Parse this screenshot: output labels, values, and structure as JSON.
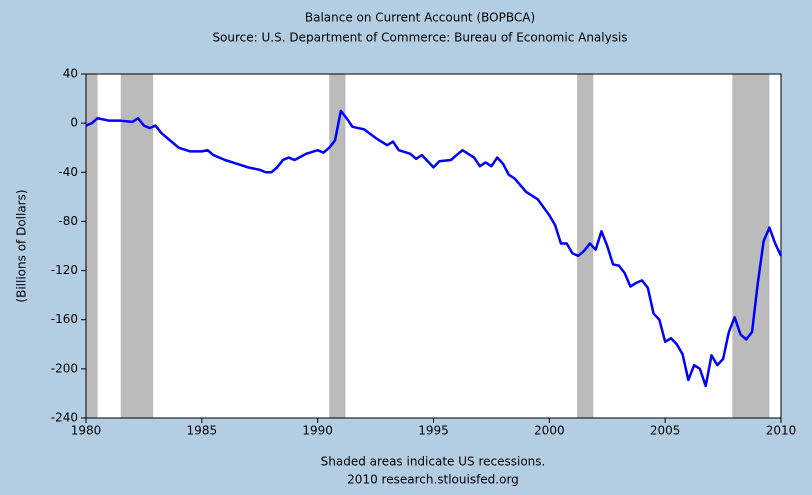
{
  "chart_data": {
    "type": "line",
    "title": "Balance on Current Account (BOPBCA)",
    "subtitle": "Source: U.S. Department of Commerce: Bureau of Economic Analysis",
    "y_label": "(Billions of Dollars)",
    "footnote": "Shaded areas indicate US recessions.",
    "credit": "2010 research.stlouisfed.org",
    "xlim": [
      1980,
      2010
    ],
    "xticks": [
      1980,
      1985,
      1990,
      1995,
      2000,
      2005,
      2010
    ],
    "ylim": [
      -240,
      40
    ],
    "yticks": [
      40,
      0,
      -40,
      -80,
      -120,
      -160,
      -200,
      -240
    ],
    "recessions": [
      [
        1980.0,
        1980.5
      ],
      [
        1981.5,
        1982.9
      ],
      [
        1990.5,
        1991.2
      ],
      [
        2001.2,
        2001.9
      ],
      [
        2007.9,
        2009.5
      ]
    ],
    "recession_color": "#bbbbbb",
    "series": [
      {
        "color": "#0000ff",
        "x": [
          1980.0,
          1980.25,
          1980.5,
          1981,
          1981.5,
          1982,
          1982.25,
          1982.5,
          1982.75,
          1983,
          1983.25,
          1983.5,
          1984,
          1984.5,
          1985,
          1985.25,
          1985.5,
          1986,
          1986.5,
          1987,
          1987.5,
          1987.75,
          1988,
          1988.25,
          1988.5,
          1988.75,
          1989,
          1989.5,
          1990,
          1990.25,
          1990.5,
          1990.75,
          1991,
          1991.25,
          1991.5,
          1992,
          1992.5,
          1993,
          1993.25,
          1993.5,
          1994,
          1994.25,
          1994.5,
          1995,
          1995.25,
          1995.75,
          1996,
          1996.25,
          1996.75,
          1997,
          1997.25,
          1997.5,
          1997.75,
          1998,
          1998.25,
          1998.5,
          1999,
          1999.5,
          2000,
          2000.25,
          2000.5,
          2000.75,
          2001,
          2001.25,
          2001.5,
          2001.75,
          2002,
          2002.25,
          2002.5,
          2002.75,
          2003,
          2003.25,
          2003.5,
          2003.75,
          2004,
          2004.25,
          2004.5,
          2004.75,
          2005,
          2005.25,
          2005.5,
          2005.75,
          2006,
          2006.25,
          2006.5,
          2006.75,
          2007,
          2007.25,
          2007.5,
          2007.75,
          2008,
          2008.25,
          2008.5,
          2008.75,
          2009,
          2009.25,
          2009.5,
          2009.75,
          2010
        ],
        "values": [
          -2,
          0,
          4,
          2,
          2,
          1,
          4,
          -2,
          -4,
          -2,
          -8,
          -12,
          -20,
          -23,
          -23,
          -22,
          -26,
          -30,
          -33,
          -36,
          -38,
          -40,
          -40,
          -36,
          -30,
          -28,
          -30,
          -25,
          -22,
          -24,
          -20,
          -14,
          10,
          4,
          -3,
          -5,
          -12,
          -18,
          -15,
          -22,
          -25,
          -29,
          -26,
          -36,
          -31,
          -30,
          -26,
          -22,
          -28,
          -35,
          -32,
          -35,
          -28,
          -33,
          -42,
          -45,
          -56,
          -62,
          -75,
          -83,
          -98,
          -98,
          -106,
          -108,
          -104,
          -98,
          -103,
          -88,
          -100,
          -115,
          -116,
          -122,
          -133,
          -130,
          -128,
          -134,
          -155,
          -160,
          -178,
          -175,
          -180,
          -188,
          -209,
          -197,
          -200,
          -214,
          -189,
          -197,
          -192,
          -170,
          -158,
          -172,
          -176,
          -170,
          -130,
          -96,
          -85,
          -98,
          -108
        ]
      }
    ]
  }
}
